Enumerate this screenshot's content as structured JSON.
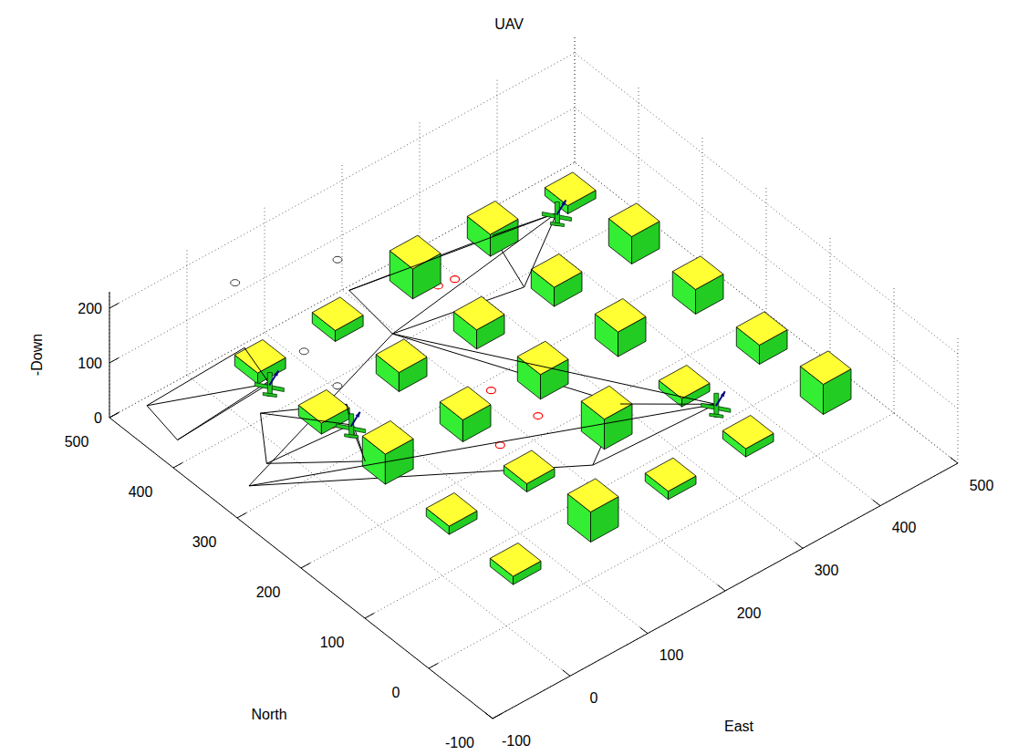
{
  "chart_data": {
    "type": "scatter3d",
    "title": "UAV",
    "xlabel": "North",
    "ylabel": "East",
    "zlabel": "-Down",
    "xlim": [
      -100,
      500
    ],
    "xticks": [
      -100,
      0,
      100,
      200,
      300,
      400,
      500
    ],
    "ylim": [
      -100,
      500
    ],
    "yticks": [
      -100,
      0,
      100,
      200,
      300,
      400,
      500
    ],
    "zlim": [
      0,
      230
    ],
    "zticks": [
      0,
      100,
      200
    ],
    "grid": true,
    "buildings": {
      "width": 36,
      "north": [
        62,
        62,
        62,
        62,
        62,
        162,
        162,
        162,
        162,
        162,
        262,
        262,
        262,
        262,
        262,
        362,
        362,
        362,
        362,
        362,
        462,
        462,
        462,
        462,
        462
      ],
      "east": [
        63,
        163,
        263,
        363,
        463,
        63,
        163,
        263,
        363,
        463,
        63,
        163,
        263,
        363,
        463,
        63,
        163,
        263,
        363,
        463,
        63,
        163,
        263,
        363,
        463
      ],
      "height": [
        15,
        55,
        15,
        15,
        55,
        15,
        15,
        55,
        15,
        35,
        55,
        40,
        45,
        45,
        45,
        20,
        35,
        35,
        35,
        50,
        20,
        20,
        55,
        40,
        15
      ]
    },
    "uavs": {
      "north": [
        405,
        304,
        420,
        93
      ],
      "east": [
        28,
        50,
        411,
        347
      ],
      "altitude": [
        50,
        50,
        50,
        50
      ]
    },
    "footprints": [
      [
        [
          490,
          -60
        ],
        [
          495,
          70
        ],
        [
          440,
          55
        ],
        [
          430,
          -70
        ]
      ],
      [
        [
          408,
          19
        ],
        [
          363,
          93
        ],
        [
          284,
          52
        ],
        [
          345,
          -25
        ]
      ],
      [
        [
          495,
          205
        ],
        [
          467,
          367
        ],
        [
          386,
          341
        ],
        [
          416,
          196
        ]
      ],
      [
        [
          187,
          301
        ],
        [
          133,
          221
        ],
        [
          330,
          -60
        ],
        [
          416,
          196
        ]
      ]
    ],
    "targets": {
      "north": [
        443,
        440,
        375,
        348,
        286,
        226,
        216
      ],
      "east": [
        277,
        296,
        64,
        62,
        216,
        227,
        170
      ]
    },
    "waypoints": {
      "north": [
        449,
        410,
        324,
        262
      ],
      "east": [
        20,
        120,
        6,
        -2
      ],
      "altitude": [
        200,
        200,
        200,
        200
      ]
    }
  }
}
